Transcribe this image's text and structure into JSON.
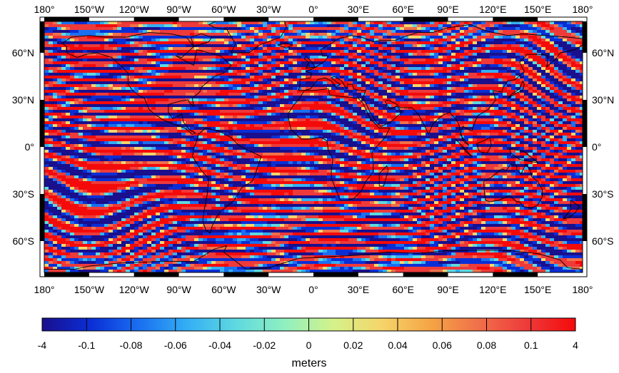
{
  "map": {
    "projection": "equirectangular",
    "lon_range": [
      -180,
      180
    ],
    "lat_range": [
      -80,
      80
    ],
    "top_axis_labels": [
      "180°",
      "150°W",
      "120°W",
      "90°W",
      "60°W",
      "30°W",
      "0°",
      "30°E",
      "60°E",
      "90°E",
      "120°E",
      "150°E",
      "180°"
    ],
    "bottom_axis_labels": [
      "180°",
      "150°W",
      "120°W",
      "90°W",
      "60°W",
      "30°W",
      "0°",
      "30°E",
      "60°E",
      "90°E",
      "120°E",
      "150°E",
      "180°"
    ],
    "left_axis_labels": [
      "60°N",
      "30°N",
      "0°",
      "30°S",
      "60°S"
    ],
    "right_axis_labels": [
      "60°N",
      "30°N",
      "0°",
      "30°S",
      "60°S"
    ],
    "frame_style": "alternating black/white border",
    "coastlines": "black outline"
  },
  "colorbar": {
    "tick_labels": [
      "-4",
      "-0.1",
      "-0.08",
      "-0.06",
      "-0.04",
      "-0.02",
      "0",
      "0.02",
      "0.04",
      "0.06",
      "0.08",
      "0.1",
      "4"
    ],
    "title": "meters",
    "colors": [
      "#1a0f8c",
      "#0a2ed6",
      "#1a6ff0",
      "#34aff5",
      "#5fd9e0",
      "#8ff0c0",
      "#d4f28a",
      "#f5d56a",
      "#f5a545",
      "#f0704a",
      "#ee3a3a",
      "#f50a0a"
    ]
  }
}
